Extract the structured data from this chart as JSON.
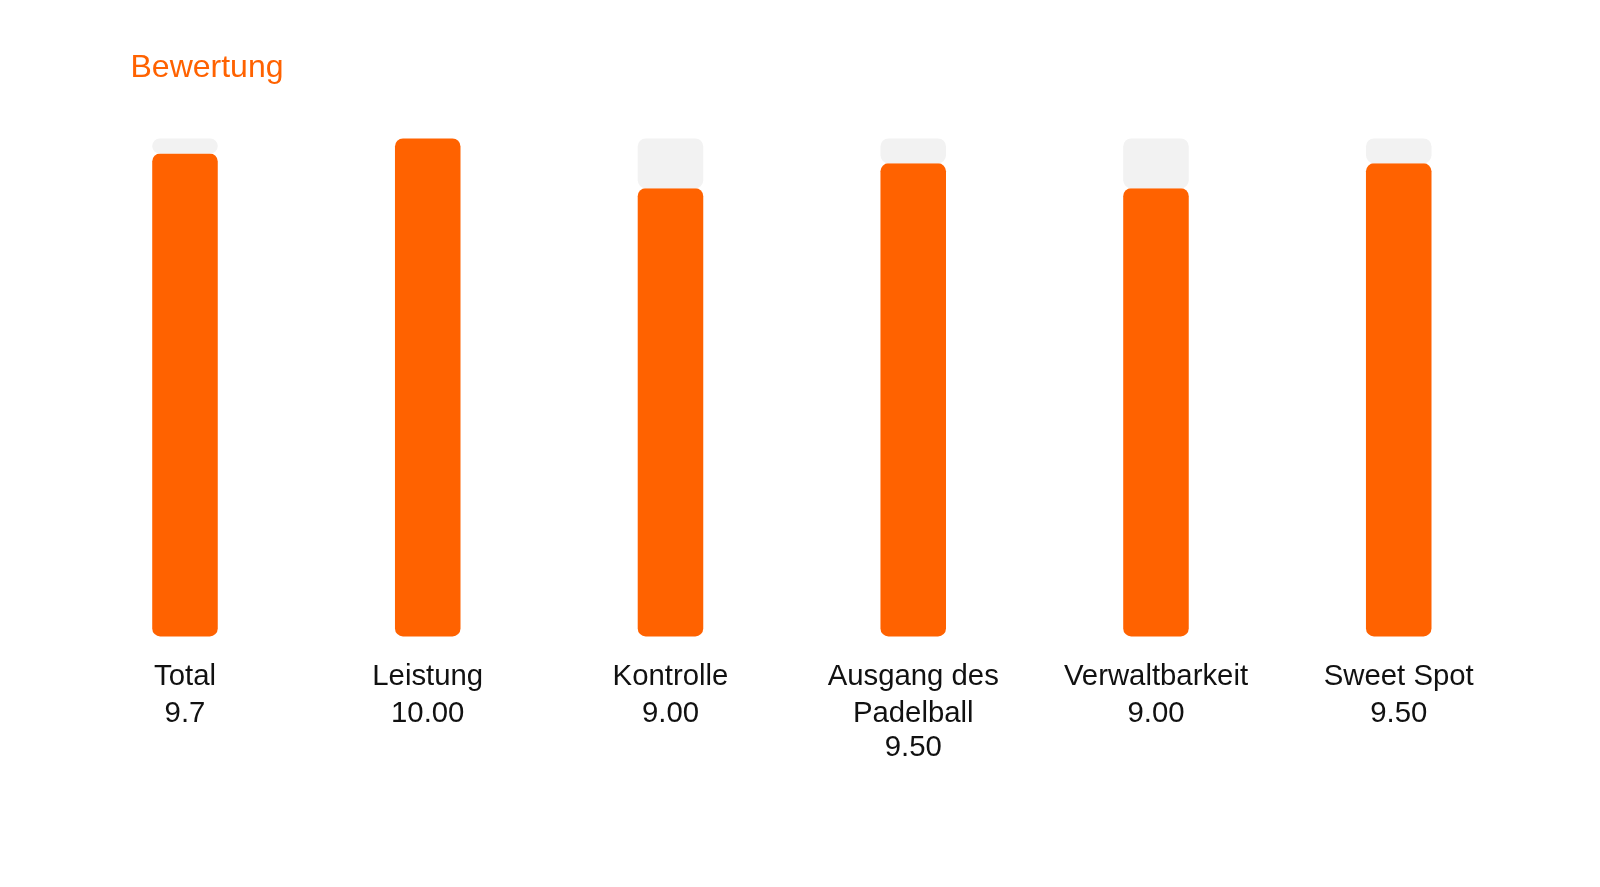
{
  "chart_data": {
    "type": "bar",
    "title": "Bewertung",
    "categories": [
      "Total",
      "Leistung",
      "Kontrolle",
      "Ausgang des Padelball",
      "Verwaltbarkeit",
      "Sweet Spot"
    ],
    "stacked": true,
    "series": [
      {
        "color": "#ff6200",
        "values": [
          9.7,
          10,
          9,
          9.5,
          9,
          9.5
        ],
        "value_labels": [
          "9.7",
          "10.00",
          "9.00",
          "9.50",
          "9.00",
          "9.50"
        ]
      },
      {
        "color": "#f2f2f2",
        "values": [
          0.3,
          0,
          1,
          0.5,
          1,
          0.5
        ]
      }
    ],
    "tick_labels": false,
    "grid": false
  }
}
